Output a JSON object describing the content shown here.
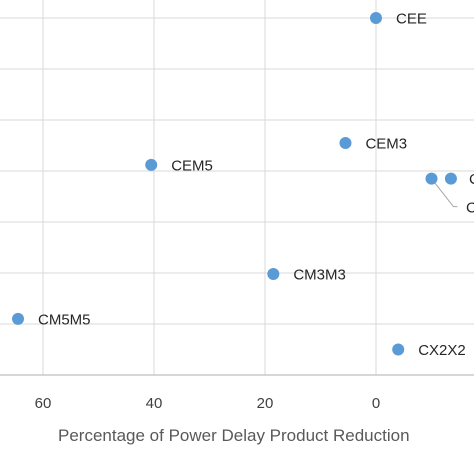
{
  "chart_data": {
    "type": "scatter",
    "title": "",
    "xlabel": "Percentage of Power Delay Product Reduction",
    "ylabel": "",
    "x_reversed": true,
    "xlim": [
      -18,
      68
    ],
    "ylim": [
      0,
      7.4
    ],
    "x_ticks": [
      60,
      40,
      20,
      0
    ],
    "y_gridlines": [
      1,
      2,
      3,
      4,
      5,
      6,
      7
    ],
    "grid": true,
    "marker_color": "#5b9bd5",
    "points": [
      {
        "label": "CEE",
        "x": 0,
        "y": 7.0
      },
      {
        "label": "CEM3",
        "x": 5.5,
        "y": 4.55
      },
      {
        "label": "CEM5",
        "x": 40.5,
        "y": 4.12
      },
      {
        "label": "CM3M3",
        "x": 18.5,
        "y": 1.98
      },
      {
        "label": "CM5M5",
        "x": 64.5,
        "y": 1.1
      },
      {
        "label": "CX2X2",
        "x": -4,
        "y": 0.5
      },
      {
        "label": "",
        "x": -10,
        "y": 3.85
      },
      {
        "label": "",
        "x": -13.5,
        "y": 3.85
      }
    ]
  }
}
